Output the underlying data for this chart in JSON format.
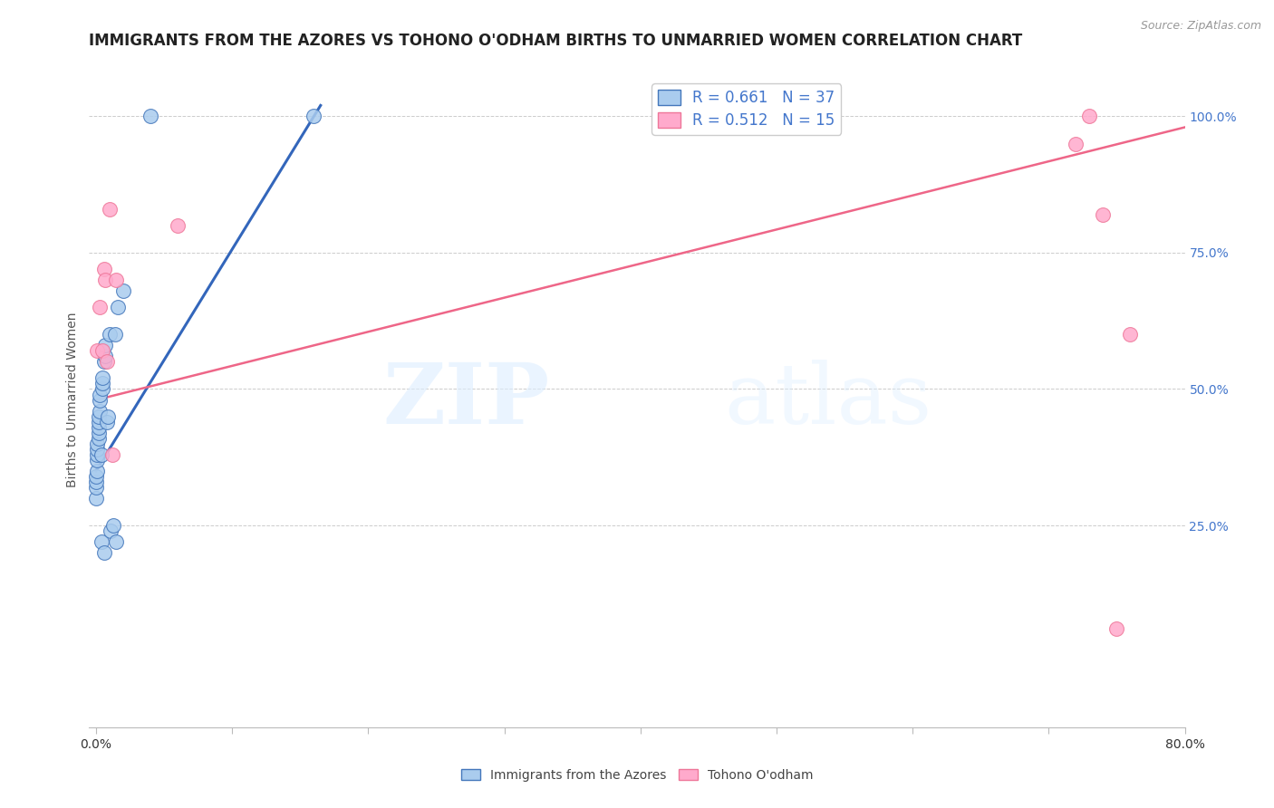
{
  "title": "IMMIGRANTS FROM THE AZORES VS TOHONO O'ODHAM BIRTHS TO UNMARRIED WOMEN CORRELATION CHART",
  "source": "Source: ZipAtlas.com",
  "ylabel": "Births to Unmarried Women",
  "blue_label": "Immigrants from the Azores",
  "pink_label": "Tohono O'odham",
  "blue_R": 0.661,
  "blue_N": 37,
  "pink_R": 0.512,
  "pink_N": 15,
  "xlim": [
    -0.005,
    0.8
  ],
  "ylim": [
    -0.12,
    1.08
  ],
  "xticks": [
    0.0,
    0.1,
    0.2,
    0.3,
    0.4,
    0.5,
    0.6,
    0.7,
    0.8
  ],
  "xticklabels": [
    "0.0%",
    "",
    "",
    "",
    "",
    "",
    "",
    "",
    "80.0%"
  ],
  "yticks_right": [
    0.25,
    0.5,
    0.75,
    1.0
  ],
  "ytick_right_labels": [
    "25.0%",
    "50.0%",
    "75.0%",
    "100.0%"
  ],
  "blue_scatter_x": [
    0.0,
    0.0,
    0.0,
    0.0,
    0.001,
    0.001,
    0.001,
    0.001,
    0.001,
    0.002,
    0.002,
    0.002,
    0.002,
    0.002,
    0.003,
    0.003,
    0.003,
    0.004,
    0.004,
    0.005,
    0.005,
    0.005,
    0.006,
    0.006,
    0.007,
    0.007,
    0.008,
    0.009,
    0.01,
    0.011,
    0.013,
    0.014,
    0.015,
    0.016,
    0.02,
    0.04,
    0.16
  ],
  "blue_scatter_y": [
    0.3,
    0.32,
    0.33,
    0.34,
    0.35,
    0.37,
    0.38,
    0.39,
    0.4,
    0.41,
    0.42,
    0.43,
    0.44,
    0.45,
    0.46,
    0.48,
    0.49,
    0.22,
    0.38,
    0.5,
    0.51,
    0.52,
    0.2,
    0.55,
    0.56,
    0.58,
    0.44,
    0.45,
    0.6,
    0.24,
    0.25,
    0.6,
    0.22,
    0.65,
    0.68,
    1.0,
    1.0
  ],
  "pink_scatter_x": [
    0.001,
    0.003,
    0.005,
    0.006,
    0.007,
    0.008,
    0.01,
    0.012,
    0.015,
    0.06,
    0.72,
    0.73,
    0.74,
    0.75,
    0.76
  ],
  "pink_scatter_y": [
    0.57,
    0.65,
    0.57,
    0.72,
    0.7,
    0.55,
    0.83,
    0.38,
    0.7,
    0.8,
    0.95,
    1.0,
    0.82,
    0.06,
    0.6
  ],
  "blue_line_x": [
    0.0,
    0.165
  ],
  "blue_line_y": [
    0.35,
    1.02
  ],
  "pink_line_x": [
    0.0,
    0.8
  ],
  "pink_line_y": [
    0.48,
    0.98
  ],
  "blue_color": "#AACCEE",
  "pink_color": "#FFAACC",
  "blue_edge_color": "#4477BB",
  "pink_edge_color": "#EE7799",
  "blue_line_color": "#3366BB",
  "pink_line_color": "#EE6688",
  "watermark_zip": "ZIP",
  "watermark_atlas": "atlas",
  "background_color": "#FFFFFF",
  "grid_color": "#CCCCCC",
  "title_fontsize": 12,
  "axis_label_fontsize": 10,
  "tick_fontsize": 10,
  "legend_fontsize": 12,
  "right_tick_color": "#4477CC",
  "title_color": "#222222",
  "source_color": "#999999"
}
